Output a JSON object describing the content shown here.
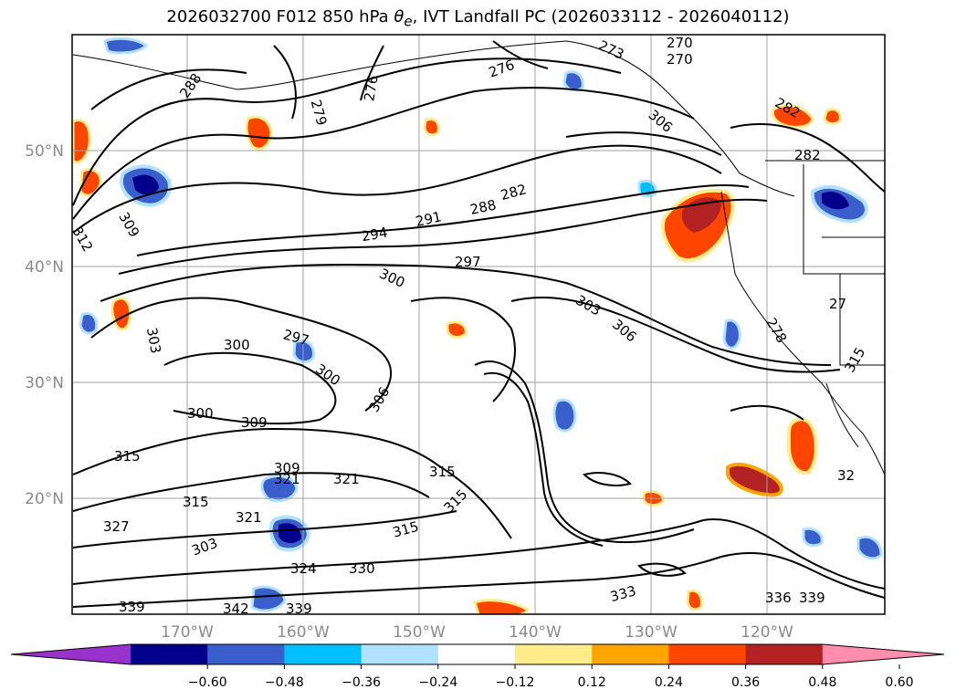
{
  "title": {
    "prefix": "2026032700 F012 850 hPa ",
    "theta_symbol": "θ",
    "theta_sub": "e",
    "suffix": ", IVT Landfall PC (2026033112 - 2026040112)"
  },
  "map": {
    "lat_labels": [
      "50°N",
      "40°N",
      "30°N",
      "20°N"
    ],
    "lon_labels": [
      "170°W",
      "160°W",
      "150°W",
      "140°W",
      "130°W",
      "120°W"
    ],
    "contour_labels": [
      "288",
      "279",
      "276",
      "276",
      "270",
      "273",
      "270",
      "282",
      "282",
      "294",
      "291",
      "288",
      "297",
      "300",
      "303",
      "306",
      "300",
      "297",
      "300",
      "306",
      "300",
      "309",
      "303",
      "309",
      "315",
      "321",
      "321",
      "315",
      "315",
      "321",
      "327",
      "315",
      "324",
      "330",
      "333",
      "339",
      "342",
      "339",
      "336",
      "339",
      "315",
      "32",
      "278",
      "27",
      "282",
      "309",
      "312",
      "306",
      "303",
      "315"
    ]
  },
  "colorbar": {
    "colors": [
      "#9932cc",
      "#00008b",
      "#3a5fcd",
      "#00bfff",
      "#b0e2ff",
      "#ffffff",
      "#ffec8b",
      "#ffa500",
      "#ff4500",
      "#b22222",
      "#ff8db0"
    ],
    "ticks": [
      "−0.60",
      "−0.48",
      "−0.36",
      "−0.24",
      "−0.12",
      "0.12",
      "0.24",
      "0.36",
      "0.48",
      "0.60"
    ]
  },
  "overlay_colors": {
    "positive_outline": "#ffec8b",
    "positive_mid": "#ff4500",
    "positive_strong": "#b22222",
    "negative_outline": "#b0e2ff",
    "negative_mid": "#3a5fcd",
    "negative_strong": "#00008b",
    "contour": "#000000",
    "grid": "#a0a0a0"
  }
}
